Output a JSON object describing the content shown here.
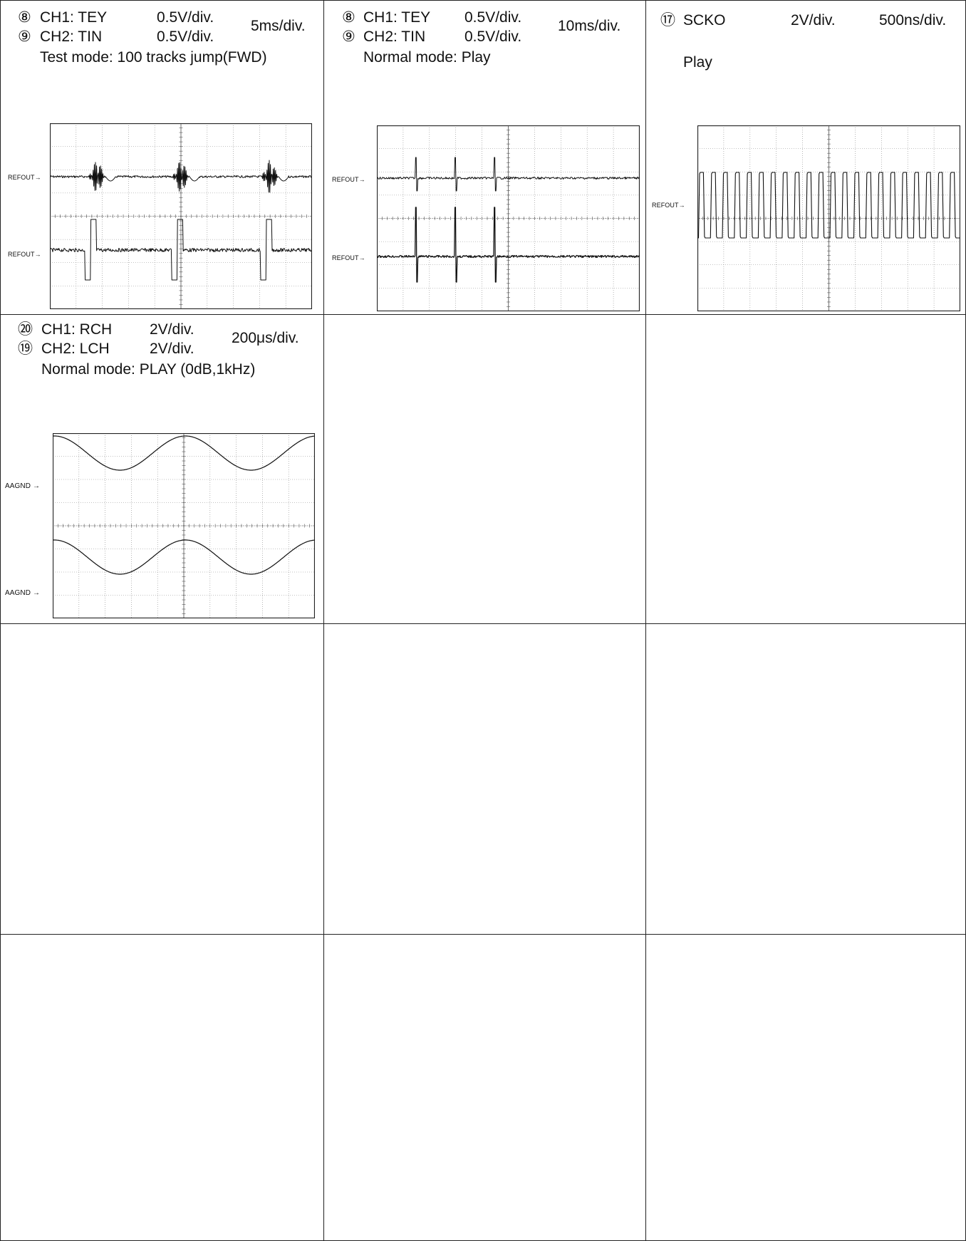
{
  "panels": [
    {
      "rows": [
        {
          "marker": "⑧",
          "channel": "CH1: TEY",
          "volts": "0.5V/div."
        },
        {
          "marker": "⑨",
          "channel": "CH2: TIN",
          "volts": "0.5V/div."
        }
      ],
      "timebase": "5ms/div.",
      "mode": "Test mode: 100 tracks jump(FWD)",
      "refs": [
        "REFOUT→",
        "REFOUT→"
      ]
    },
    {
      "rows": [
        {
          "marker": "⑧",
          "channel": "CH1: TEY",
          "volts": "0.5V/div."
        },
        {
          "marker": "⑨",
          "channel": "CH2: TIN",
          "volts": "0.5V/div."
        }
      ],
      "timebase": "10ms/div.",
      "mode": "Normal mode: Play",
      "refs": [
        "REFOUT→",
        "REFOUT→"
      ]
    },
    {
      "rows": [
        {
          "marker": "⑰",
          "channel": "SCKO",
          "volts": "2V/div."
        }
      ],
      "timebase": "500ns/div.",
      "mode": "Play",
      "refs": [
        "REFOUT→"
      ]
    },
    {
      "rows": [
        {
          "marker": "⑳",
          "channel": "CH1: RCH",
          "volts": "2V/div."
        },
        {
          "marker": "⑲",
          "channel": "CH2: LCH",
          "volts": "2V/div."
        }
      ],
      "timebase": "200μs/div.",
      "mode": "Normal mode: PLAY (0dB,1kHz)",
      "refs": [
        "AAGND →",
        "AAGND →"
      ]
    }
  ],
  "chart_data": [
    {
      "type": "line",
      "title": "Test mode: 100 tracks jump(FWD)",
      "xlabel": "",
      "ylabel": "",
      "grid": true,
      "series": [
        {
          "name": "CH1: TEY",
          "scale": "0.5V/div.",
          "bursts_at_div": [
            1.8,
            5.0,
            8.4
          ]
        },
        {
          "name": "CH2: TIN",
          "scale": "0.5V/div.",
          "pulses_at_div": [
            1.5,
            4.8,
            8.2
          ]
        }
      ]
    },
    {
      "type": "line",
      "title": "Normal mode: Play",
      "xlabel": "",
      "ylabel": "",
      "grid": true,
      "series": [
        {
          "name": "CH1: TEY",
          "scale": "0.5V/div.",
          "spikes_at_div": [
            1.5,
            3.0,
            4.5
          ]
        },
        {
          "name": "CH2: TIN",
          "scale": "0.5V/div.",
          "spikes_at_div": [
            1.5,
            3.0,
            4.5
          ]
        }
      ]
    },
    {
      "type": "line",
      "title": "Play",
      "xlabel": "",
      "ylabel": "",
      "grid": true,
      "series": [
        {
          "name": "SCKO",
          "scale": "2V/div.",
          "waveform": "square",
          "cycles": 22
        }
      ]
    },
    {
      "type": "line",
      "title": "Normal mode: PLAY (0dB,1kHz)",
      "xlabel": "",
      "ylabel": "",
      "grid": true,
      "series": [
        {
          "name": "CH1: RCH",
          "scale": "2V/div.",
          "waveform": "sine",
          "cycles": 2
        },
        {
          "name": "CH2: LCH",
          "scale": "2V/div.",
          "waveform": "sine",
          "cycles": 2
        }
      ]
    }
  ]
}
